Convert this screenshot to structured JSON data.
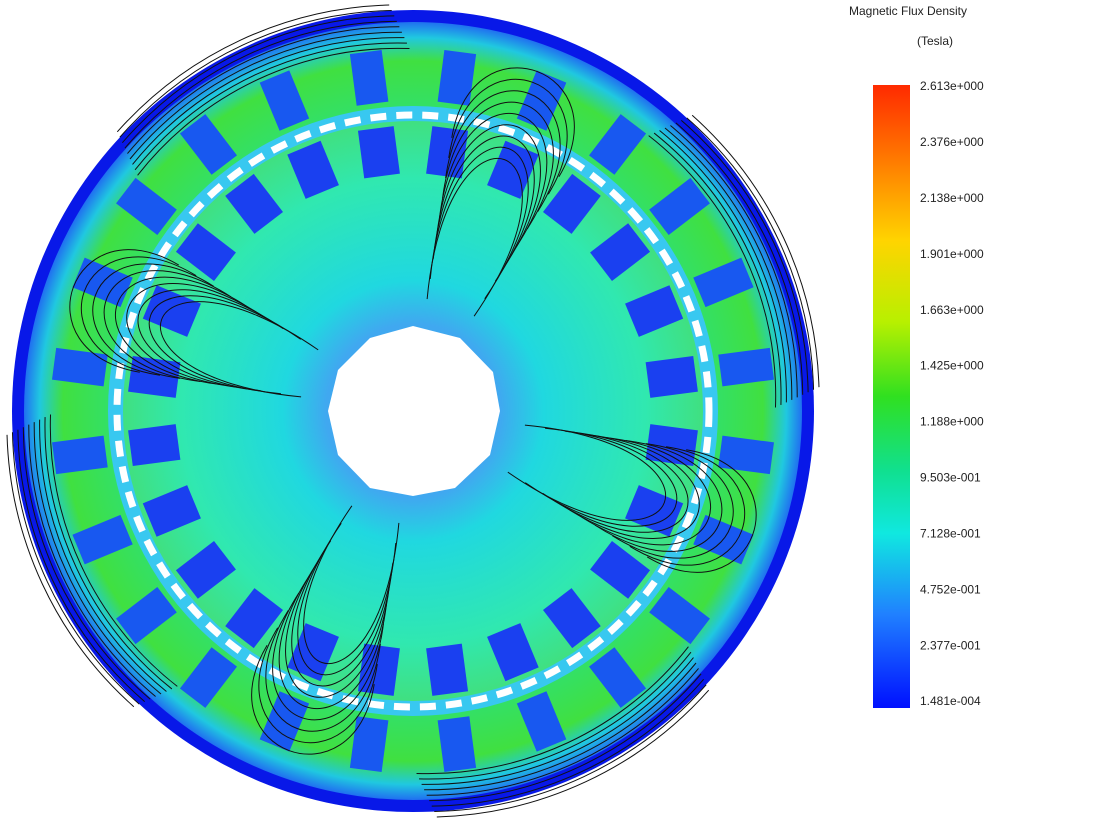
{
  "legend": {
    "title": "Magnetic Flux Density",
    "unit": "(Tesla)",
    "ticks": [
      "2.613e+000",
      "2.376e+000",
      "2.138e+000",
      "1.901e+000",
      "1.663e+000",
      "1.425e+000",
      "1.188e+000",
      "9.503e-001",
      "7.128e-001",
      "4.752e-001",
      "2.377e-001",
      "1.481e-004"
    ]
  }
}
